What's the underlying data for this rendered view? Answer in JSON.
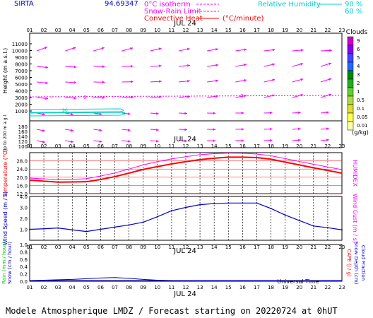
{
  "header": {
    "station": "SIRTA",
    "coords": "94.69347",
    "legend_freezing": "0°C isotherm",
    "legend_snowrain": "Snow-Rain Limit",
    "legend_convective": "Convective Heat",
    "legend_convective_unit": "(°C/minute)",
    "legend_rh": "Relative Humidity",
    "legend_rh_90": "90 %",
    "legend_rh_60": "60 %",
    "colors": {
      "magenta": "#ff00ff",
      "cyan": "#00cccc",
      "red": "#ff0000",
      "blue": "#0000c8"
    }
  },
  "hours": [
    "01",
    "02",
    "03",
    "04",
    "05",
    "06",
    "07",
    "08",
    "09",
    "10",
    "11",
    "12",
    "13",
    "14",
    "15",
    "16",
    "17",
    "18",
    "19",
    "20",
    "21",
    "22",
    "23"
  ],
  "date_label": "JUL 24",
  "wind_panel": {
    "ylabel": "Height  (m a.s.l.)",
    "ylabel2": "Up to 200 m a.g.l.",
    "yticks_upper": [
      "11000",
      "10000",
      "9000",
      "8000",
      "7000",
      "6000",
      "5000",
      "4000",
      "3000",
      "2000",
      "1000"
    ],
    "yticks_lower": [
      "180",
      "160",
      "140",
      "120",
      "100"
    ],
    "isotherm_label": "0",
    "rh_label": "90",
    "rh_label2": "60"
  },
  "clouds_scale": {
    "title": "Clouds",
    "unit": "(g/kg)",
    "levels": [
      "9",
      "6",
      "5",
      "4",
      "3",
      "2",
      "1",
      "0.5",
      "0.1",
      "0.05",
      "0.01"
    ],
    "colors": [
      "#cc00cc",
      "#8800ee",
      "#4444ff",
      "#2266ff",
      "#008800",
      "#22aa22",
      "#66cc33",
      "#aadd44",
      "#dddd33",
      "#ffff55",
      "#ffffa0"
    ]
  },
  "temperature_panel": {
    "ylabel": "Temperature (°C)",
    "ylabel_right": "HUMIDEX",
    "yticks": [
      "28.0",
      "24.0",
      "20.0",
      "16.0",
      "12.0"
    ]
  },
  "wind_speed_panel": {
    "ylabel": "Wind Speed (m / s)",
    "ylabel_right": "Wind Gust (m / s)",
    "yticks": [
      "4.0",
      "3.0",
      "2.0",
      "1.0"
    ]
  },
  "precip_panel": {
    "ylabel": "Rain (mm / hour)",
    "ylabel2": "Snow (cm / hour)",
    "ylabel_right": "CAPE (J / g)",
    "ylabel_right2": "Snow Depth (cm)",
    "ylabel_right3": "Cloud Fraction",
    "yticks": [
      "1.0",
      "0.8",
      "0.6",
      "0.4",
      "0.2",
      "0.0"
    ],
    "footer_axis": "Universal Time"
  },
  "footer": {
    "title": "Modele Atmospherique LMDZ / Forecast starting on 20220724 at 0hUT"
  },
  "chart_data": [
    {
      "type": "line",
      "title": "Temperature",
      "x": [
        "01",
        "02",
        "03",
        "04",
        "05",
        "06",
        "07",
        "08",
        "09",
        "10",
        "11",
        "12",
        "13",
        "14",
        "15",
        "16",
        "17",
        "18",
        "19",
        "20",
        "21",
        "22",
        "23"
      ],
      "ylim": [
        12,
        32
      ],
      "series": [
        {
          "name": "Temperature",
          "values": [
            18.6,
            18.1,
            17.6,
            17.7,
            17.8,
            18.9,
            20.3,
            22.0,
            23.8,
            25.2,
            26.5,
            27.6,
            28.6,
            29.3,
            29.8,
            29.8,
            29.6,
            28.8,
            27.4,
            26.0,
            24.6,
            23.3,
            22.0
          ]
        },
        {
          "name": "HUMIDEX",
          "values": [
            19.6,
            19.2,
            18.8,
            19.0,
            19.3,
            20.6,
            22.1,
            24.0,
            26.0,
            27.6,
            29.0,
            30.0,
            31.0,
            31.5,
            31.8,
            31.7,
            31.3,
            30.5,
            29.1,
            27.7,
            26.3,
            25.0,
            23.7
          ]
        }
      ]
    },
    {
      "type": "line",
      "title": "Wind Speed",
      "x": [
        "01",
        "02",
        "03",
        "04",
        "05",
        "06",
        "07",
        "08",
        "09",
        "10",
        "11",
        "12",
        "13",
        "14",
        "15",
        "16",
        "17",
        "18",
        "19",
        "20",
        "21",
        "22",
        "23"
      ],
      "ylim": [
        0,
        4
      ],
      "series": [
        {
          "name": "Wind Speed",
          "values": [
            1.0,
            1.05,
            1.12,
            0.95,
            0.8,
            1.0,
            1.2,
            1.4,
            1.65,
            2.15,
            2.7,
            3.0,
            3.25,
            3.35,
            3.4,
            3.4,
            3.4,
            2.9,
            2.3,
            1.8,
            1.3,
            1.15,
            0.95
          ]
        }
      ]
    },
    {
      "type": "line",
      "title": "Rain",
      "x": [
        "01",
        "02",
        "03",
        "04",
        "05",
        "06",
        "07",
        "08",
        "09",
        "10",
        "11",
        "12",
        "13",
        "14",
        "15",
        "16",
        "17",
        "18",
        "19",
        "20",
        "21",
        "22",
        "23"
      ],
      "ylim": [
        0,
        1
      ],
      "series": [
        {
          "name": "Rain",
          "values": [
            0.02,
            0.03,
            0.04,
            0.05,
            0.07,
            0.09,
            0.1,
            0.08,
            0.05,
            0.03,
            0.02,
            0.01,
            0.01,
            0.01,
            0.01,
            0.01,
            0.01,
            0.01,
            0.01,
            0.01,
            0.01,
            0.01,
            0.01
          ]
        }
      ]
    }
  ]
}
